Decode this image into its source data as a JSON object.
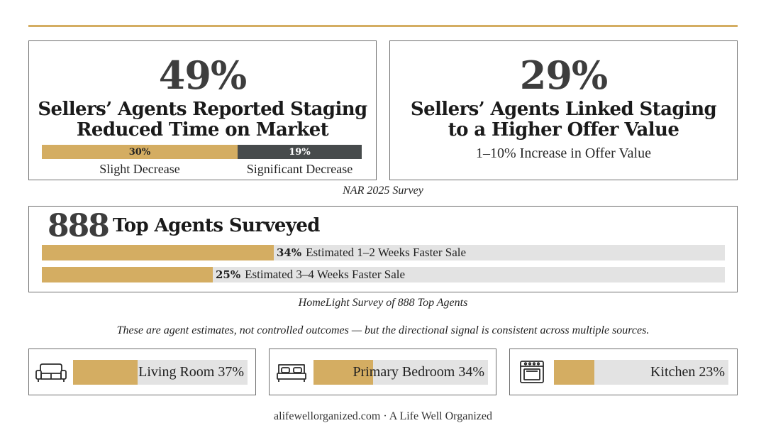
{
  "stat_left": {
    "value": "49%",
    "title_line1": "Sellers’ Agents Reported Staging",
    "title_line2": "Reduced Time on Market",
    "split": [
      {
        "label": "30%",
        "name": "Slight Decrease",
        "value": 30,
        "color": "#d4ad62"
      },
      {
        "label": "19%",
        "name": "Significant Decrease",
        "value": 19,
        "color": "#474b4c"
      }
    ]
  },
  "stat_right": {
    "value": "29%",
    "title_line1": "Sellers’ Agents Linked Staging",
    "title_line2": "to a Higher Offer Value",
    "subtitle": "1–10% Increase in Offer Value"
  },
  "source_nar": "NAR 2025 Survey",
  "agents": {
    "count": "888",
    "title": "Top Agents Surveyed",
    "bars": [
      {
        "pct_label": "34%",
        "text": "Estimated 1–2 Weeks Faster Sale",
        "value": 34
      },
      {
        "pct_label": "25%",
        "text": "Estimated 3–4 Weeks Faster Sale",
        "value": 25
      }
    ]
  },
  "source_homelight": "HomeLight Survey of 888 Top Agents",
  "note": "These are agent estimates, not controlled outcomes — but the directional signal is consistent across multiple sources.",
  "rooms": [
    {
      "label": "Living Room 37%",
      "value": 37,
      "icon": "sofa-icon"
    },
    {
      "label": "Primary Bedroom 34%",
      "value": 34,
      "icon": "bed-icon"
    },
    {
      "label": "Kitchen 23%",
      "value": 23,
      "icon": "stove-icon"
    }
  ],
  "footer": "alifewellorganized.com · A Life Well Organized",
  "colors": {
    "gold": "#d4ad62",
    "charcoal": "#474b4c",
    "track": "#e3e3e3"
  },
  "chart_data": [
    {
      "type": "bar",
      "title": "Sellers’ Agents Reported Staging Reduced Time on Market",
      "categories": [
        "Slight Decrease",
        "Significant Decrease"
      ],
      "values": [
        30,
        19
      ],
      "total": 49
    },
    {
      "type": "bar",
      "title": "Top Agents Surveyed",
      "categories": [
        "Estimated 1–2 Weeks Faster Sale",
        "Estimated 3–4 Weeks Faster Sale"
      ],
      "values": [
        34,
        25
      ],
      "xlim": [
        0,
        100
      ]
    },
    {
      "type": "bar",
      "categories": [
        "Living Room",
        "Primary Bedroom",
        "Kitchen"
      ],
      "values": [
        37,
        34,
        23
      ],
      "xlim": [
        0,
        100
      ]
    }
  ]
}
